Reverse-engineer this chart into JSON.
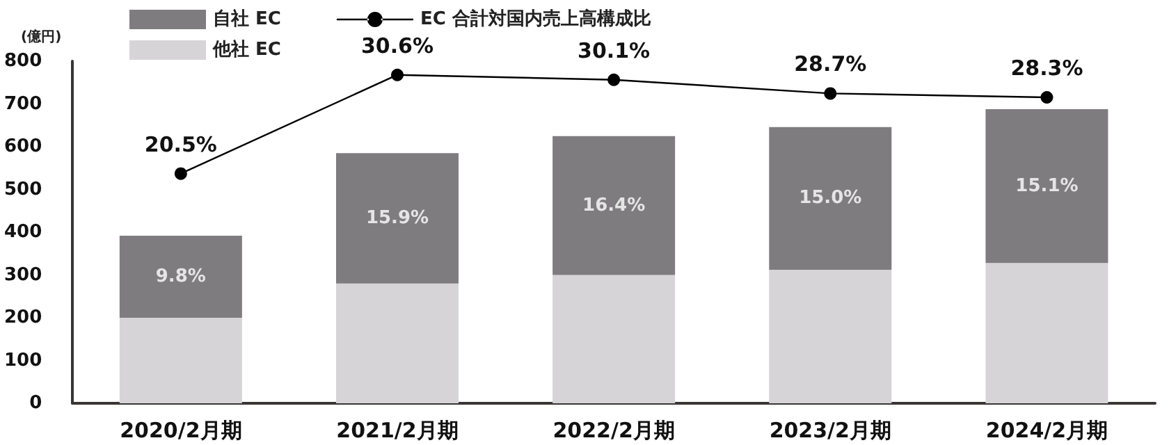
{
  "chart_data": {
    "type": "bar",
    "ylabel": "(億円)",
    "categories": [
      "2020/2月期",
      "2021/2月期",
      "2022/2月期",
      "2023/2月期",
      "2024/2月期"
    ],
    "stacked": true,
    "series": [
      {
        "name": "他社 EC",
        "color": "#d6d4d7",
        "values": [
          200,
          280,
          300,
          312,
          328
        ]
      },
      {
        "name": "自社 EC",
        "color": "#7f7c7f",
        "values": [
          192,
          305,
          325,
          334,
          360
        ]
      },
      {
        "name": "EC 合計対国内売上高構成比",
        "type": "line",
        "axis": "y2",
        "color": "#000000",
        "values": [
          20.5,
          30.6,
          30.1,
          28.7,
          28.3
        ],
        "value_labels": [
          "20.5%",
          "30.6%",
          "30.1%",
          "28.7%",
          "28.3%"
        ]
      }
    ],
    "ylim": [
      0,
      800
    ],
    "yticks": [
      0,
      100,
      200,
      300,
      400,
      500,
      600,
      700,
      800
    ],
    "y2lim": [
      -3,
      32
    ],
    "annotations": [
      "9.8%",
      "15.9%",
      "16.4%",
      "15.0%",
      "15.1%"
    ],
    "grid": false,
    "legend": "top left",
    "marker": "circle",
    "line_style": "solid"
  }
}
